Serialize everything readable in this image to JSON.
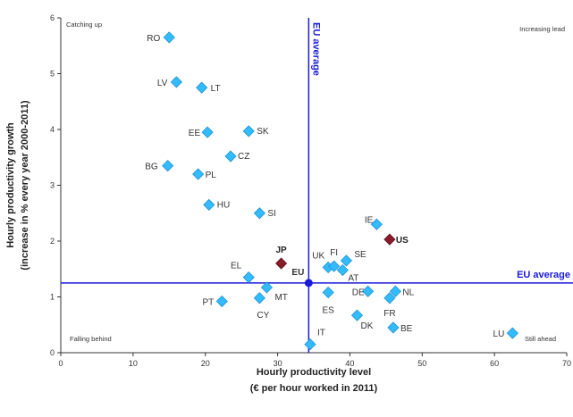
{
  "chart_data": {
    "type": "scatter",
    "title": "",
    "xlabel": [
      "Hourly productivity level",
      "(€ per hour worked in 2011)"
    ],
    "ylabel": [
      "Hourly productivity growth",
      "(increase in % every year 2000-2011)"
    ],
    "xlim": [
      0,
      70
    ],
    "ylim": [
      0,
      6
    ],
    "xticks": [
      0,
      10,
      20,
      30,
      40,
      50,
      60,
      70
    ],
    "yticks": [
      0,
      1,
      2,
      3,
      4,
      5,
      6
    ],
    "grid": false,
    "colors": {
      "normal": "#33bbff",
      "normal_edge": "#1e90d0",
      "highlight": "#8b1a2b",
      "reference": "#1a1adb",
      "eu_point": "#1a1adb"
    },
    "reference_lines": {
      "vertical": {
        "x": 34.3,
        "label": "EU average"
      },
      "horizontal": {
        "y": 1.25,
        "label": "EU average"
      }
    },
    "quadrant_labels": {
      "top_left": "Catching up",
      "top_right": "Increasing lead",
      "bottom_left": "Falling behind",
      "bottom_right": "Still ahead"
    },
    "points": [
      {
        "label": "RO",
        "x": 15,
        "y": 5.65,
        "highlight": false
      },
      {
        "label": "LV",
        "x": 16,
        "y": 4.85,
        "highlight": false
      },
      {
        "label": "LT",
        "x": 19.5,
        "y": 4.75,
        "highlight": false
      },
      {
        "label": "EE",
        "x": 20.3,
        "y": 3.95,
        "highlight": false
      },
      {
        "label": "SK",
        "x": 26,
        "y": 3.97,
        "highlight": false
      },
      {
        "label": "CZ",
        "x": 23.5,
        "y": 3.52,
        "highlight": false
      },
      {
        "label": "BG",
        "x": 14.8,
        "y": 3.35,
        "highlight": false
      },
      {
        "label": "PL",
        "x": 19,
        "y": 3.2,
        "highlight": false
      },
      {
        "label": "HU",
        "x": 20.5,
        "y": 2.65,
        "highlight": false
      },
      {
        "label": "SI",
        "x": 27.5,
        "y": 2.5,
        "highlight": false
      },
      {
        "label": "JP",
        "x": 30.5,
        "y": 1.6,
        "highlight": true
      },
      {
        "label": "EL",
        "x": 26,
        "y": 1.35,
        "highlight": false
      },
      {
        "label": "MT",
        "x": 28.5,
        "y": 1.17,
        "highlight": false
      },
      {
        "label": "CY",
        "x": 27.5,
        "y": 0.98,
        "highlight": false
      },
      {
        "label": "PT",
        "x": 22.3,
        "y": 0.92,
        "highlight": false
      },
      {
        "label": "EU",
        "x": 34.3,
        "y": 1.25,
        "highlight": false,
        "eu": true
      },
      {
        "label": "IT",
        "x": 34.5,
        "y": 0.15,
        "highlight": false
      },
      {
        "label": "UK",
        "x": 37,
        "y": 1.53,
        "highlight": false
      },
      {
        "label": "FI",
        "x": 37.8,
        "y": 1.55,
        "highlight": false
      },
      {
        "label": "SE",
        "x": 39.5,
        "y": 1.65,
        "highlight": false
      },
      {
        "label": "AT",
        "x": 39,
        "y": 1.48,
        "highlight": false
      },
      {
        "label": "ES",
        "x": 37,
        "y": 1.08,
        "highlight": false
      },
      {
        "label": "DE",
        "x": 42.5,
        "y": 1.1,
        "highlight": false
      },
      {
        "label": "DK",
        "x": 41,
        "y": 0.67,
        "highlight": false
      },
      {
        "label": "IE",
        "x": 43.7,
        "y": 2.3,
        "highlight": false
      },
      {
        "label": "US",
        "x": 45.5,
        "y": 2.03,
        "highlight": true
      },
      {
        "label": "NL",
        "x": 46.3,
        "y": 1.1,
        "highlight": false
      },
      {
        "label": "FR",
        "x": 45.5,
        "y": 0.98,
        "highlight": false
      },
      {
        "label": "BE",
        "x": 46,
        "y": 0.45,
        "highlight": false
      },
      {
        "label": "LU",
        "x": 62.5,
        "y": 0.35,
        "highlight": false
      }
    ]
  }
}
